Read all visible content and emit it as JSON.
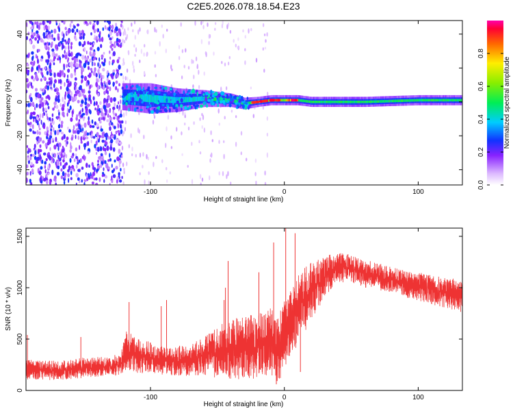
{
  "chart_data": [
    {
      "type": "heatmap",
      "title": "C2E5.2026.078.18.54.E23",
      "xlabel": "Height of straight line (km)",
      "ylabel": "Frequency (Hz)",
      "xlim": [
        -193,
        133
      ],
      "ylim": [
        -49,
        48
      ],
      "xticks": [
        -100,
        0,
        100
      ],
      "xtick_labels": [
        "-100",
        "0",
        "100"
      ],
      "yticks": [
        -40,
        -20,
        0,
        20,
        40
      ],
      "ytick_labels": [
        "-40",
        "-20",
        "0",
        "20",
        "40"
      ],
      "colorbar": {
        "label": "Normalized spectral amplitude",
        "range": [
          0,
          1
        ],
        "ticks": [
          0.0,
          0.2,
          0.4,
          0.6,
          0.8
        ],
        "tick_labels": [
          "0.0",
          "0.2",
          "0.4",
          "0.6",
          "0.8"
        ]
      },
      "description_points": {
        "noise_region_x": [
          -193,
          -121
        ],
        "band_start_x": -121,
        "band_center_hz": [
          [
            -120,
            3
          ],
          [
            -100,
            2
          ],
          [
            -80,
            1
          ],
          [
            -60,
            2
          ],
          [
            -40,
            1
          ],
          [
            -30,
            -1
          ],
          [
            -20,
            0
          ],
          [
            -10,
            1
          ],
          [
            0,
            1
          ],
          [
            10,
            1
          ],
          [
            20,
            0
          ],
          [
            60,
            0
          ],
          [
            100,
            1
          ],
          [
            133,
            1
          ]
        ],
        "band_halfwidth_hz": [
          [
            -120,
            8
          ],
          [
            -100,
            9
          ],
          [
            -80,
            7
          ],
          [
            -60,
            5
          ],
          [
            -40,
            4
          ],
          [
            -20,
            3
          ],
          [
            0,
            3
          ],
          [
            20,
            3
          ],
          [
            133,
            3
          ]
        ],
        "peak_amplitude_region_x": [
          -25,
          10
        ]
      }
    },
    {
      "type": "line",
      "xlabel": "Height of straight line (km)",
      "ylabel": "SNR (10 * v/v)",
      "xlim": [
        -193,
        133
      ],
      "ylim": [
        0,
        1580
      ],
      "xticks": [
        -100,
        0,
        100
      ],
      "xtick_labels": [
        "-100",
        "0",
        "100"
      ],
      "yticks": [
        0,
        500,
        1000,
        1500
      ],
      "ytick_labels": [
        "0",
        "500",
        "1000",
        "1500"
      ],
      "series": [
        {
          "name": "SNR",
          "color": "#ee3333",
          "envelope": {
            "x": [
              -193,
              -170,
              -150,
              -130,
              -122,
              -118,
              -110,
              -100,
              -90,
              -80,
              -70,
              -60,
              -50,
              -40,
              -30,
              -20,
              -10,
              -5,
              0,
              5,
              10,
              20,
              30,
              40,
              50,
              60,
              80,
              100,
              120,
              133
            ],
            "lower": [
              100,
              100,
              120,
              140,
              150,
              200,
              170,
              160,
              150,
              140,
              140,
              150,
              120,
              100,
              100,
              120,
              150,
              60,
              200,
              300,
              450,
              650,
              900,
              1050,
              1050,
              1000,
              950,
              870,
              800,
              760
            ],
            "upper": [
              300,
              290,
              320,
              330,
              370,
              600,
              500,
              480,
              420,
              440,
              450,
              520,
              620,
              700,
              720,
              750,
              800,
              700,
              900,
              1000,
              1150,
              1250,
              1320,
              1350,
              1320,
              1280,
              1200,
              1150,
              1100,
              1080
            ]
          },
          "spikes": [
            {
              "x": -192,
              "y": 540
            },
            {
              "x": -152,
              "y": 520
            },
            {
              "x": -116,
              "y": 860
            },
            {
              "x": -92,
              "y": 820
            },
            {
              "x": -88,
              "y": 880
            },
            {
              "x": -45,
              "y": 880
            },
            {
              "x": -44,
              "y": 1000
            },
            {
              "x": -42,
              "y": 1260
            },
            {
              "x": -19,
              "y": 1150
            },
            {
              "x": -8,
              "y": 1440
            },
            {
              "x": 1,
              "y": 1580
            },
            {
              "x": 8,
              "y": 1530
            },
            {
              "x": -6,
              "y": 60
            },
            {
              "x": 12,
              "y": 180
            }
          ]
        }
      ]
    }
  ]
}
